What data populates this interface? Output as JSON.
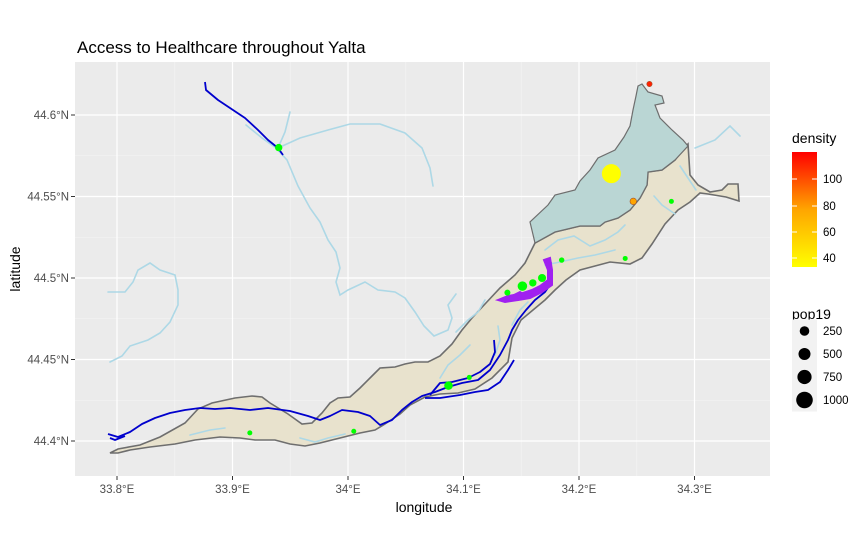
{
  "chart_data": {
    "type": "map",
    "title": "Access to Healthcare throughout Yalta",
    "xlabel": "longitude",
    "ylabel": "latitude",
    "x_ticks": [
      "33.8°E",
      "33.9°E",
      "34°E",
      "34.1°E",
      "34.2°E",
      "34.3°E"
    ],
    "y_ticks": [
      "44.4°N",
      "44.45°N",
      "44.5°N",
      "44.55°N",
      "44.6°N"
    ],
    "xlim": [
      33.77,
      34.34
    ],
    "ylim": [
      44.38,
      44.63
    ],
    "grid": true,
    "legend": {
      "density": {
        "title": "density",
        "type": "colorbar",
        "min_color": "#FFFF00",
        "max_color": "#FF0000",
        "ticks": [
          "40",
          "60",
          "80",
          "100"
        ]
      },
      "pop19": {
        "title": "pop19",
        "type": "size",
        "labels": [
          "250",
          "500",
          "750",
          "1000"
        ]
      }
    },
    "layers": {
      "district_fill": "#E8E2CD",
      "north_fill": "#BAD6D4",
      "boundary": "#6E6E6E",
      "rivers": "#ADD8E6",
      "roads": "#0000CD",
      "urban": "#A020F0"
    },
    "points": [
      {
        "lon": 33.94,
        "lat": 44.58,
        "color": "#00FF00",
        "pop19": 150
      },
      {
        "lon": 34.228,
        "lat": 44.564,
        "color": "#FFFF00",
        "pop19": 1000
      },
      {
        "lon": 34.247,
        "lat": 44.547,
        "color": "#FFA500",
        "pop19": 120
      },
      {
        "lon": 34.261,
        "lat": 44.619,
        "color": "#FF2000",
        "pop19": 80
      },
      {
        "lon": 34.28,
        "lat": 44.547,
        "color": "#00FF00",
        "pop19": 60
      },
      {
        "lon": 34.24,
        "lat": 44.512,
        "color": "#00FF00",
        "pop19": 60
      },
      {
        "lon": 34.185,
        "lat": 44.511,
        "color": "#00FF00",
        "pop19": 80
      },
      {
        "lon": 34.168,
        "lat": 44.5,
        "color": "#00FF00",
        "pop19": 180
      },
      {
        "lon": 34.16,
        "lat": 44.497,
        "color": "#00FF00",
        "pop19": 150
      },
      {
        "lon": 34.151,
        "lat": 44.495,
        "color": "#00FF00",
        "pop19": 250
      },
      {
        "lon": 34.138,
        "lat": 44.491,
        "color": "#00FF00",
        "pop19": 100
      },
      {
        "lon": 34.087,
        "lat": 44.434,
        "color": "#00FF00",
        "pop19": 200
      },
      {
        "lon": 34.105,
        "lat": 44.439,
        "color": "#00FF00",
        "pop19": 60
      },
      {
        "lon": 34.005,
        "lat": 44.406,
        "color": "#00FF00",
        "pop19": 60
      },
      {
        "lon": 33.915,
        "lat": 44.405,
        "color": "#00FF00",
        "pop19": 50
      }
    ]
  }
}
